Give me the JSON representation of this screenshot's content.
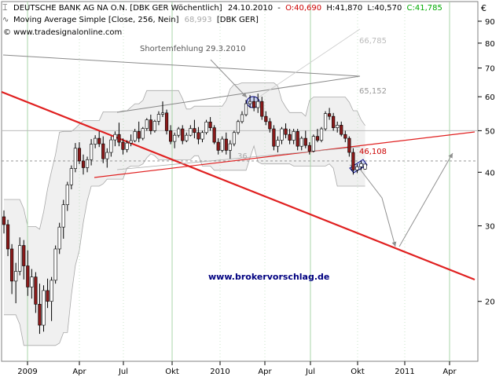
{
  "header": {
    "title_name": "DEUTSCHE BANK AG NA O.N. [DBK GER  Wöchentlich]",
    "date": "24.10.2010",
    "open": "O:40,690",
    "high": "H:41,870",
    "low": "L:40,570",
    "close": "C:41,785",
    "ma_label": "Moving Average Simple [Close, 256, Nein]",
    "ma_value": "68,993",
    "ma_symbol": "[DBK GER]",
    "copyright": "© www.tradesignalonline.com",
    "currency": "€"
  },
  "annotations": {
    "shortfall": "Shortemfehlung 29.3.2010",
    "band_upper": "66,785",
    "band_mid": "65,152",
    "support_value": "46,108",
    "partial_label": "36",
    "watermark": "www.brokervorschlag.de"
  },
  "colors": {
    "trendline": "#e02020",
    "support_line": "#e02020",
    "candle_up": "#ffffff",
    "candle_down": "#8b1a1a",
    "candle_outline": "#000000",
    "band": "#a8a8a8",
    "band_fill": "#f0f0f0",
    "grid_vertical": "#a8d4a8",
    "grid_horizontal": "#bbbbbb",
    "arrow": "#909090",
    "watermark": "#000080",
    "close_value": "#00aa00",
    "open_value": "#cc0000",
    "support_value": "#cc0000"
  },
  "chart_data": {
    "type": "candlestick",
    "frequency": "weekly",
    "y_scale": "log",
    "ylim": [
      14.5,
      100
    ],
    "y_ticks": [
      20,
      30,
      40,
      50,
      60,
      70,
      80,
      90
    ],
    "x_ticks": [
      "2009",
      "Apr",
      "Jul",
      "Okt",
      "2010",
      "Apr",
      "Jul",
      "Okt",
      "2011",
      "Apr"
    ],
    "candles": [
      {
        "o": 31.5,
        "h": 32.6,
        "l": 28.8,
        "c": 30.2
      },
      {
        "o": 30.2,
        "h": 31.0,
        "l": 25.5,
        "c": 26.5
      },
      {
        "o": 26.5,
        "h": 27.2,
        "l": 20.8,
        "c": 22.3
      },
      {
        "o": 22.3,
        "h": 24.6,
        "l": 19.8,
        "c": 23.5
      },
      {
        "o": 23.5,
        "h": 28.2,
        "l": 23.0,
        "c": 27.0
      },
      {
        "o": 27.0,
        "h": 27.8,
        "l": 22.5,
        "c": 24.2
      },
      {
        "o": 24.2,
        "h": 26.3,
        "l": 20.6,
        "c": 21.6
      },
      {
        "o": 21.6,
        "h": 23.8,
        "l": 20.3,
        "c": 22.8
      },
      {
        "o": 22.8,
        "h": 23.4,
        "l": 18.8,
        "c": 19.7
      },
      {
        "o": 19.7,
        "h": 22.0,
        "l": 16.8,
        "c": 17.6
      },
      {
        "o": 17.6,
        "h": 21.8,
        "l": 17.0,
        "c": 21.2
      },
      {
        "o": 21.2,
        "h": 22.6,
        "l": 19.3,
        "c": 20.0
      },
      {
        "o": 20.0,
        "h": 22.8,
        "l": 18.0,
        "c": 22.4
      },
      {
        "o": 22.4,
        "h": 27.0,
        "l": 22.0,
        "c": 26.5
      },
      {
        "o": 26.5,
        "h": 30.5,
        "l": 25.8,
        "c": 29.8
      },
      {
        "o": 29.8,
        "h": 34.5,
        "l": 28.0,
        "c": 33.6
      },
      {
        "o": 33.6,
        "h": 38.0,
        "l": 32.5,
        "c": 37.4
      },
      {
        "o": 37.4,
        "h": 41.5,
        "l": 36.5,
        "c": 40.8
      },
      {
        "o": 40.8,
        "h": 46.8,
        "l": 40.0,
        "c": 45.5
      },
      {
        "o": 45.5,
        "h": 47.0,
        "l": 41.8,
        "c": 42.5
      },
      {
        "o": 42.5,
        "h": 44.0,
        "l": 39.5,
        "c": 41.0
      },
      {
        "o": 41.0,
        "h": 43.5,
        "l": 40.0,
        "c": 42.8
      },
      {
        "o": 42.8,
        "h": 47.8,
        "l": 41.5,
        "c": 46.5
      },
      {
        "o": 46.5,
        "h": 48.8,
        "l": 45.5,
        "c": 48.0
      },
      {
        "o": 48.0,
        "h": 49.8,
        "l": 45.8,
        "c": 46.6
      },
      {
        "o": 46.6,
        "h": 48.5,
        "l": 42.0,
        "c": 43.0
      },
      {
        "o": 43.0,
        "h": 45.5,
        "l": 41.0,
        "c": 44.5
      },
      {
        "o": 44.5,
        "h": 48.5,
        "l": 43.5,
        "c": 47.6
      },
      {
        "o": 47.6,
        "h": 49.8,
        "l": 46.0,
        "c": 49.0
      },
      {
        "o": 49.0,
        "h": 52.2,
        "l": 46.0,
        "c": 47.0
      },
      {
        "o": 47.0,
        "h": 48.0,
        "l": 44.0,
        "c": 45.2
      },
      {
        "o": 45.2,
        "h": 47.5,
        "l": 44.5,
        "c": 46.8
      },
      {
        "o": 46.8,
        "h": 49.0,
        "l": 46.0,
        "c": 47.4
      },
      {
        "o": 47.4,
        "h": 50.5,
        "l": 47.0,
        "c": 49.8
      },
      {
        "o": 49.8,
        "h": 52.5,
        "l": 47.0,
        "c": 48.0
      },
      {
        "o": 48.0,
        "h": 51.0,
        "l": 47.5,
        "c": 50.6
      },
      {
        "o": 50.6,
        "h": 53.5,
        "l": 50.0,
        "c": 53.0
      },
      {
        "o": 53.0,
        "h": 54.5,
        "l": 49.0,
        "c": 50.0
      },
      {
        "o": 50.0,
        "h": 53.0,
        "l": 49.5,
        "c": 52.6
      },
      {
        "o": 52.6,
        "h": 55.5,
        "l": 51.5,
        "c": 54.6
      },
      {
        "o": 54.6,
        "h": 58.5,
        "l": 53.8,
        "c": 55.0
      },
      {
        "o": 55.0,
        "h": 56.0,
        "l": 49.0,
        "c": 50.0
      },
      {
        "o": 50.0,
        "h": 51.5,
        "l": 46.5,
        "c": 47.2
      },
      {
        "o": 47.2,
        "h": 49.5,
        "l": 45.5,
        "c": 48.8
      },
      {
        "o": 48.8,
        "h": 51.0,
        "l": 48.2,
        "c": 50.5
      },
      {
        "o": 50.5,
        "h": 51.5,
        "l": 46.5,
        "c": 47.4
      },
      {
        "o": 47.4,
        "h": 49.5,
        "l": 47.0,
        "c": 48.8
      },
      {
        "o": 48.8,
        "h": 51.5,
        "l": 48.5,
        "c": 50.6
      },
      {
        "o": 50.6,
        "h": 53.0,
        "l": 48.0,
        "c": 49.5
      },
      {
        "o": 49.5,
        "h": 51.0,
        "l": 46.5,
        "c": 47.8
      },
      {
        "o": 47.8,
        "h": 50.0,
        "l": 47.0,
        "c": 49.5
      },
      {
        "o": 49.5,
        "h": 53.0,
        "l": 49.0,
        "c": 52.4
      },
      {
        "o": 52.4,
        "h": 53.8,
        "l": 50.0,
        "c": 50.8
      },
      {
        "o": 50.8,
        "h": 51.5,
        "l": 46.5,
        "c": 47.0
      },
      {
        "o": 47.0,
        "h": 48.0,
        "l": 44.0,
        "c": 45.0
      },
      {
        "o": 45.0,
        "h": 48.5,
        "l": 44.5,
        "c": 47.8
      },
      {
        "o": 47.8,
        "h": 49.5,
        "l": 44.0,
        "c": 45.0
      },
      {
        "o": 45.0,
        "h": 47.5,
        "l": 43.0,
        "c": 46.6
      },
      {
        "o": 46.6,
        "h": 50.0,
        "l": 46.0,
        "c": 49.5
      },
      {
        "o": 49.5,
        "h": 53.0,
        "l": 49.0,
        "c": 52.5
      },
      {
        "o": 52.5,
        "h": 55.5,
        "l": 52.0,
        "c": 54.5
      },
      {
        "o": 54.5,
        "h": 59.0,
        "l": 54.0,
        "c": 57.8
      },
      {
        "o": 57.8,
        "h": 60.5,
        "l": 56.5,
        "c": 58.5
      },
      {
        "o": 58.5,
        "h": 60.0,
        "l": 55.5,
        "c": 56.6
      },
      {
        "o": 56.6,
        "h": 61.0,
        "l": 55.0,
        "c": 58.5
      },
      {
        "o": 58.5,
        "h": 60.0,
        "l": 53.0,
        "c": 54.0
      },
      {
        "o": 54.0,
        "h": 55.5,
        "l": 51.5,
        "c": 52.5
      },
      {
        "o": 52.5,
        "h": 53.5,
        "l": 49.5,
        "c": 50.5
      },
      {
        "o": 50.5,
        "h": 51.5,
        "l": 45.0,
        "c": 46.0
      },
      {
        "o": 46.0,
        "h": 48.5,
        "l": 44.5,
        "c": 47.5
      },
      {
        "o": 47.5,
        "h": 51.0,
        "l": 46.5,
        "c": 50.5
      },
      {
        "o": 50.5,
        "h": 52.0,
        "l": 48.0,
        "c": 49.0
      },
      {
        "o": 49.0,
        "h": 50.5,
        "l": 46.5,
        "c": 47.5
      },
      {
        "o": 47.5,
        "h": 50.5,
        "l": 46.5,
        "c": 49.8
      },
      {
        "o": 49.8,
        "h": 50.5,
        "l": 45.0,
        "c": 46.0
      },
      {
        "o": 46.0,
        "h": 48.5,
        "l": 45.0,
        "c": 48.0
      },
      {
        "o": 48.0,
        "h": 50.0,
        "l": 45.5,
        "c": 46.2
      },
      {
        "o": 46.2,
        "h": 47.0,
        "l": 44.0,
        "c": 44.8
      },
      {
        "o": 44.8,
        "h": 49.0,
        "l": 44.5,
        "c": 48.5
      },
      {
        "o": 48.5,
        "h": 50.5,
        "l": 47.0,
        "c": 47.5
      },
      {
        "o": 47.5,
        "h": 51.0,
        "l": 47.0,
        "c": 50.5
      },
      {
        "o": 50.5,
        "h": 55.5,
        "l": 50.0,
        "c": 54.8
      },
      {
        "o": 54.8,
        "h": 56.5,
        "l": 53.0,
        "c": 54.0
      },
      {
        "o": 54.0,
        "h": 55.0,
        "l": 50.0,
        "c": 50.8
      },
      {
        "o": 50.8,
        "h": 52.5,
        "l": 49.5,
        "c": 51.5
      },
      {
        "o": 51.5,
        "h": 52.5,
        "l": 48.5,
        "c": 49.0
      },
      {
        "o": 49.0,
        "h": 50.0,
        "l": 47.0,
        "c": 48.0
      },
      {
        "o": 48.0,
        "h": 48.5,
        "l": 43.5,
        "c": 44.5
      },
      {
        "o": 44.5,
        "h": 45.5,
        "l": 39.5,
        "c": 40.5
      },
      {
        "o": 40.5,
        "h": 41.8,
        "l": 39.8,
        "c": 41.2
      },
      {
        "o": 41.2,
        "h": 42.5,
        "l": 40.5,
        "c": 41.9
      },
      {
        "o": 40.69,
        "h": 41.87,
        "l": 40.57,
        "c": 41.785
      }
    ]
  }
}
